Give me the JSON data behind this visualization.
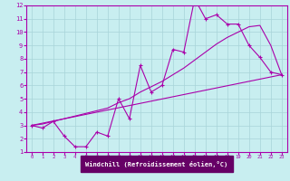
{
  "bg_color": "#c8eef0",
  "grid_color": "#a8d4d8",
  "line_color": "#aa00aa",
  "xlabel": "Windchill (Refroidissement éolien,°C)",
  "xlabel_bg": "#660066",
  "xlabel_fg": "#ffffff",
  "xlim": [
    -0.5,
    23.5
  ],
  "ylim": [
    1,
    12
  ],
  "xticks": [
    0,
    1,
    2,
    3,
    4,
    5,
    6,
    7,
    8,
    9,
    10,
    11,
    12,
    13,
    14,
    15,
    16,
    17,
    18,
    19,
    20,
    21,
    22,
    23
  ],
  "yticks": [
    1,
    2,
    3,
    4,
    5,
    6,
    7,
    8,
    9,
    10,
    11,
    12
  ],
  "line1_x": [
    0,
    1,
    2,
    3,
    4,
    5,
    6,
    7,
    8,
    9,
    10,
    11,
    12,
    13,
    14,
    15,
    16,
    17,
    18,
    19,
    20,
    21,
    22,
    23
  ],
  "line1_y": [
    3.0,
    2.8,
    3.3,
    2.2,
    1.4,
    1.4,
    2.5,
    2.2,
    5.0,
    3.5,
    7.5,
    5.5,
    6.0,
    8.7,
    8.5,
    12.5,
    11.0,
    11.3,
    10.6,
    10.6,
    9.0,
    8.1,
    7.0,
    6.8
  ],
  "line2_x": [
    0,
    1,
    2,
    3,
    4,
    5,
    6,
    7,
    8,
    9,
    10,
    11,
    12,
    13,
    14,
    15,
    16,
    17,
    18,
    19,
    20,
    21,
    22,
    23
  ],
  "line2_y": [
    3.0,
    3.1,
    3.3,
    3.5,
    3.7,
    3.9,
    4.1,
    4.3,
    4.7,
    5.0,
    5.5,
    5.9,
    6.3,
    6.8,
    7.3,
    7.9,
    8.5,
    9.1,
    9.6,
    10.0,
    10.4,
    10.5,
    9.0,
    6.8
  ],
  "line3_x": [
    0,
    23
  ],
  "line3_y": [
    3.0,
    6.8
  ]
}
